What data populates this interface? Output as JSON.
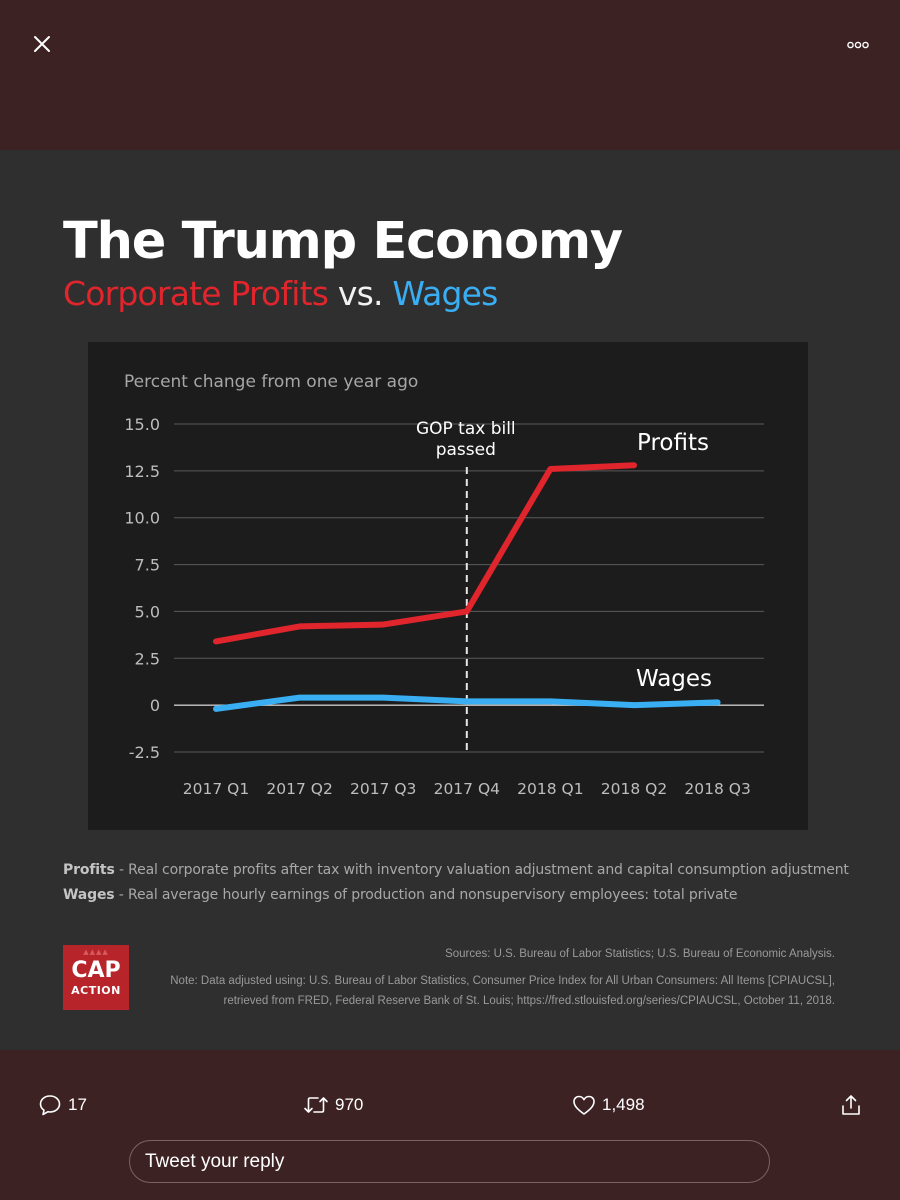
{
  "toolbar": {
    "close_icon": "close-icon",
    "more_icon": "more-options-icon"
  },
  "graphic": {
    "headline": "The Trump Economy",
    "subhead_profits": "Corporate Profits",
    "subhead_vs": "vs.",
    "subhead_wages": "Wages",
    "colors": {
      "profits": "#e0252c",
      "wages": "#3aaef2",
      "background": "#2f2f2f",
      "chart_panel": "#1c1c1c"
    },
    "notes": [
      {
        "term": "Profits",
        "text": " - Real corporate profits after tax with inventory valuation adjustment and capital consumption adjustment"
      },
      {
        "term": "Wages",
        "text": " - Real average hourly earnings of production and nonsupervisory employees: total private"
      }
    ],
    "sources": "Sources: U.S. Bureau of Labor Statistics; U.S. Bureau of Economic Analysis.",
    "note_line1": "Note: Data adjusted using: U.S. Bureau of Labor Statistics, Consumer Price Index for All Urban Consumers: All Items [CPIAUCSL],",
    "note_line2": "retrieved from FRED, Federal Reserve Bank of St. Louis; https://fred.stlouisfed.org/series/CPIAUCSL, October 11, 2018.",
    "logo": {
      "line1": "CAP",
      "line2": "ACTION"
    }
  },
  "chart_data": {
    "type": "line",
    "title": "",
    "ylabel": "Percent change from one year ago",
    "xlabel": "",
    "categories": [
      "2017 Q1",
      "2017 Q2",
      "2017 Q3",
      "2017 Q4",
      "2018 Q1",
      "2018 Q2",
      "2018 Q3"
    ],
    "y_ticks": [
      "15.0",
      "12.5",
      "10.0",
      "7.5",
      "5.0",
      "2.5",
      "0",
      "-2.5"
    ],
    "ylim": [
      -2.5,
      15.0
    ],
    "grid": true,
    "series": [
      {
        "name": "Profits",
        "values": [
          3.4,
          4.2,
          4.3,
          5.0,
          12.6,
          12.8,
          null
        ]
      },
      {
        "name": "Wages",
        "values": [
          -0.2,
          0.4,
          0.4,
          0.2,
          0.2,
          0.0,
          0.15
        ]
      }
    ],
    "annotation": {
      "line1": "GOP tax bill",
      "line2": "passed",
      "category": "2017 Q4"
    }
  },
  "actions": {
    "replies": "17",
    "retweets": "970",
    "likes": "1,498",
    "reply_placeholder": "Tweet your reply"
  }
}
